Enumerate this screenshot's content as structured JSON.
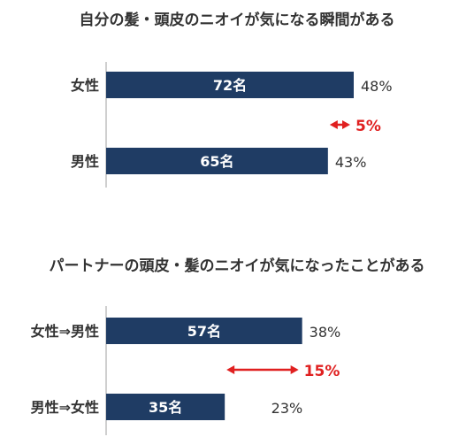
{
  "chart_data": [
    {
      "type": "bar",
      "orientation": "horizontal",
      "title": "自分の髪・頭皮のニオイが気になる瞬間がある",
      "categories": [
        "女性",
        "男性"
      ],
      "values": [
        48,
        43
      ],
      "bar_labels": [
        "72名",
        "65名"
      ],
      "value_labels": [
        "48%",
        "43%"
      ],
      "difference_label": "5%",
      "unit": "%",
      "xlim": [
        0,
        60
      ]
    },
    {
      "type": "bar",
      "orientation": "horizontal",
      "title": "パートナーの頭皮・髪のニオイが気になったことがある",
      "categories": [
        "女性⇒男性",
        "男性⇒女性"
      ],
      "values": [
        38,
        23
      ],
      "bar_labels": [
        "57名",
        "35名"
      ],
      "value_labels": [
        "38%",
        "23%"
      ],
      "difference_label": "15%",
      "unit": "%",
      "xlim": [
        0,
        60
      ]
    }
  ],
  "colors": {
    "bar": "#1f3c64",
    "bar_text": "#ffffff",
    "label_text": "#333333",
    "difference": "#e02020",
    "axis": "#bfbfbf"
  }
}
